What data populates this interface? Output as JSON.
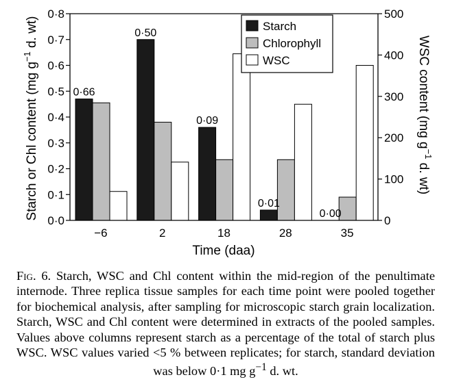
{
  "chart_data": {
    "type": "bar",
    "categories": [
      "−6",
      "2",
      "18",
      "28",
      "35"
    ],
    "xlabel": "Time (daa)",
    "ylabel_left_main": "Starch or Chl content (mg g",
    "ylabel_left_sup": "−1",
    "ylabel_left_tail": " d. wt)",
    "ylabel_right_main": "WSC content (mg g",
    "ylabel_right_sup": "−1",
    "ylabel_right_tail": " d. wt)",
    "ylim_left": [
      0,
      0.8
    ],
    "ylim_right": [
      0,
      500
    ],
    "left_ticks": [
      "0·0",
      "0·1",
      "0·2",
      "0·3",
      "0·4",
      "0·5",
      "0·6",
      "0·7",
      "0·8"
    ],
    "right_ticks": [
      "0",
      "100",
      "200",
      "300",
      "400",
      "500"
    ],
    "grid": false,
    "legend_position": "top-right",
    "series": [
      {
        "name": "Starch",
        "axis": "left",
        "color": "#1a1a1a",
        "values": [
          0.47,
          0.7,
          0.36,
          0.04,
          0.0
        ]
      },
      {
        "name": "Chlorophyll",
        "axis": "left",
        "color": "#bdbdbd",
        "values": [
          0.455,
          0.38,
          0.235,
          0.235,
          0.09
        ]
      },
      {
        "name": "WSC",
        "axis": "right",
        "color": "#ffffff",
        "values": [
          70,
          141,
          403,
          281,
          375
        ]
      }
    ],
    "bar_labels": [
      "0·66",
      "0·50",
      "0·09",
      "0·01",
      "0·00"
    ]
  },
  "caption": {
    "figure_label": "Fig. 6.",
    "text": "Starch, WSC and Chl content within the mid-region of the penultimate internode. Three replica tissue samples for each time point were pooled together for biochemical analysis, after sampling for microscopic starch grain localization. Starch, WSC and Chl content were determined in extracts of the pooled samples. Values above columns represent starch as a percentage of the total of starch plus WSC. WSC values varied <5 % between replicates; for starch, standard deviation was below 0·1 mg g",
    "sup": "−1",
    "tail": " d. wt."
  }
}
